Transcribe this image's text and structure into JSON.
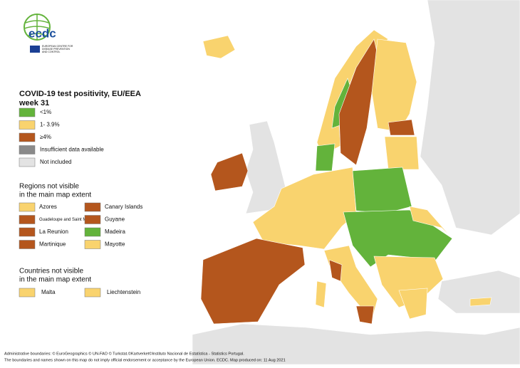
{
  "logo": {
    "name": "ecdc",
    "subtitle": [
      "EUROPEAN CENTRE FOR",
      "DISEASE PREVENTION",
      "AND CONTROL"
    ]
  },
  "title": [
    "COVID-19 test positivity, EU/EEA",
    "week 31"
  ],
  "legend": [
    {
      "label": "<1%",
      "color": "#63b33b"
    },
    {
      "label": "1- 3.9%",
      "color": "#f9d36e"
    },
    {
      "label": "≥4%",
      "color": "#b4561d"
    },
    {
      "label": "Insufficient data available",
      "color": "#8a8a8a"
    },
    {
      "label": "Not included",
      "color": "#e3e3e3"
    }
  ],
  "regions": {
    "heading": [
      "Regions not visible",
      "in the main map extent"
    ],
    "items": [
      {
        "label": "Azores",
        "color": "#f9d36e"
      },
      {
        "label": "Guadeloupe and Saint Martin",
        "color": "#b4561d"
      },
      {
        "label": "La Reunion",
        "color": "#b4561d"
      },
      {
        "label": "Martinique",
        "color": "#b4561d"
      },
      {
        "label": "Canary Islands",
        "color": "#b4561d"
      },
      {
        "label": "Guyane",
        "color": "#b4561d"
      },
      {
        "label": "Madeira",
        "color": "#63b33b"
      },
      {
        "label": "Mayotte",
        "color": "#f9d36e"
      }
    ]
  },
  "countries": {
    "heading": [
      "Countries not visible",
      "in the main map extent"
    ],
    "items": [
      {
        "label": "Malta",
        "color": "#f9d36e"
      },
      {
        "label": "Liechtenstein",
        "color": "#f9d36e"
      }
    ]
  },
  "footer": [
    "Administrative boundaries: © EuroGeographics © UN-FAO © Turkstat.©Kartverket©Instituto Nacional de Estatística - Statistics Portugal.",
    "The boundaries and names shown on this map do not imply official endorsement or acceptance by the European Union. ECDC. Map produced on: 11 Aug 2021"
  ]
}
